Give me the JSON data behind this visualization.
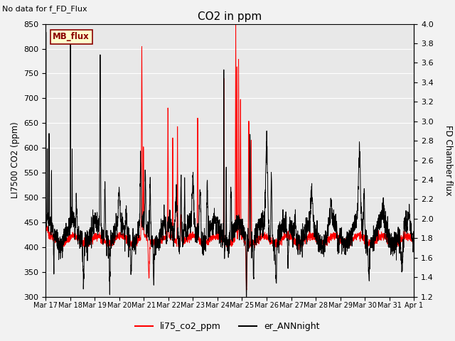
{
  "title": "CO2 in ppm",
  "ylabel_left": "LI7500 CO2 (ppm)",
  "ylabel_right": "FD Chamber flux",
  "top_left_text": "No data for f_FD_Flux",
  "legend_labels": [
    "li75_co2_ppm",
    "er_ANNnight"
  ],
  "ylim_left": [
    300,
    850
  ],
  "ylim_right": [
    1.2,
    4.0
  ],
  "yticks_left": [
    300,
    350,
    400,
    450,
    500,
    550,
    600,
    650,
    700,
    750,
    800,
    850
  ],
  "yticks_right": [
    1.2,
    1.4,
    1.6,
    1.8,
    2.0,
    2.2,
    2.4,
    2.6,
    2.8,
    3.0,
    3.2,
    3.4,
    3.6,
    3.8,
    4.0
  ],
  "xtick_labels": [
    "Mar 17",
    "Mar 18",
    "Mar 19",
    "Mar 20",
    "Mar 21",
    "Mar 22",
    "Mar 23",
    "Mar 24",
    "Mar 25",
    "Mar 26",
    "Mar 27",
    "Mar 28",
    "Mar 29",
    "Mar 30",
    "Mar 31",
    "Apr 1"
  ],
  "mb_flux_box": {
    "text": "MB_flux",
    "facecolor": "#ffffcc",
    "edgecolor": "#8B0000"
  },
  "background_color": "#e8e8e8",
  "grid_color": "white",
  "fig_bg": "#f2f2f2",
  "n_days": 15.5,
  "n_pts": 3000
}
